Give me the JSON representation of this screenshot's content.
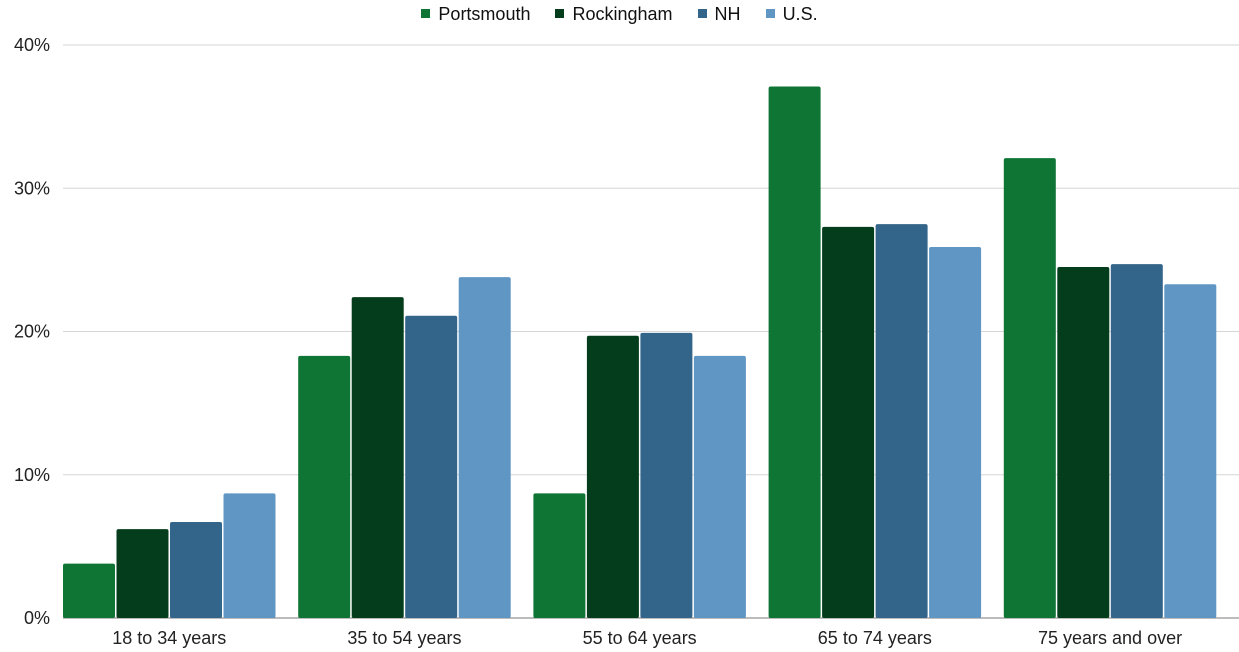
{
  "chart_data": {
    "type": "bar",
    "title": "",
    "xlabel": "",
    "ylabel": "",
    "categories": [
      "18 to 34 years",
      "35 to 54 years",
      "55 to 64 years",
      "65 to 74 years",
      "75 years and over"
    ],
    "series": [
      {
        "name": "Portsmouth",
        "color": "#0e7534",
        "values": [
          3.8,
          18.3,
          8.7,
          37.1,
          32.1
        ]
      },
      {
        "name": "Rockingham",
        "color": "#043d1c",
        "values": [
          6.2,
          22.4,
          19.7,
          27.3,
          24.5
        ]
      },
      {
        "name": "NH",
        "color": "#33658a",
        "values": [
          6.7,
          21.1,
          19.9,
          27.5,
          24.7
        ]
      },
      {
        "name": "U.S.",
        "color": "#5f96c3",
        "values": [
          8.7,
          23.8,
          18.3,
          25.9,
          23.3
        ]
      }
    ],
    "ylim": [
      0,
      40
    ],
    "yticks": [
      "0%",
      "10%",
      "20%",
      "30%",
      "40%"
    ],
    "grid": true,
    "legend_position": "top-center"
  }
}
